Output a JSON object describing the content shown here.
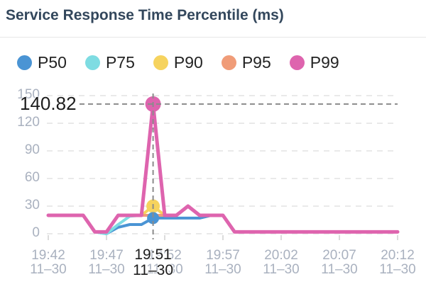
{
  "header": {
    "title": "Service Response Time Percentile (ms)"
  },
  "chart_data": {
    "type": "line",
    "title": "Service Response Time Percentile (ms)",
    "legend": {
      "position": "top",
      "labels": [
        "P50",
        "P75",
        "P90",
        "P95",
        "P99"
      ]
    },
    "x_axis": {
      "start": "19:42",
      "end": "20:12",
      "interval_minutes": 1,
      "tick_labels": [
        {
          "time": "19:42",
          "date": "11–30"
        },
        {
          "time": "19:47",
          "date": "11–30"
        },
        {
          "time": "19:52",
          "date": "11–30"
        },
        {
          "time": "19:57",
          "date": "11–30"
        },
        {
          "time": "20:02",
          "date": "11–30"
        },
        {
          "time": "20:07",
          "date": "11–30"
        },
        {
          "time": "20:12",
          "date": "11–30"
        }
      ]
    },
    "y_axis": {
      "min": 0,
      "max": 150,
      "tick_values": [
        0,
        30,
        60,
        90,
        120,
        150
      ],
      "tick_labels": [
        "0",
        "30",
        "60",
        "90",
        "120",
        "150"
      ]
    },
    "series": [
      {
        "name": "P50",
        "color": "#4a94d4",
        "values": [
          20,
          20,
          20,
          20,
          2,
          0,
          7,
          10,
          10,
          17,
          17,
          17,
          17,
          17,
          20,
          20,
          2,
          2,
          2,
          2,
          2,
          2,
          2,
          2,
          2,
          2,
          2,
          2,
          2,
          2,
          2
        ]
      },
      {
        "name": "P75",
        "color": "#7edce2",
        "values": [
          20,
          20,
          20,
          20,
          2,
          0,
          10,
          19,
          20,
          20,
          20,
          20,
          30,
          20,
          20,
          20,
          2,
          2,
          2,
          2,
          2,
          2,
          2,
          2,
          2,
          2,
          2,
          2,
          2,
          2,
          2
        ]
      },
      {
        "name": "P90",
        "color": "#f6d35e",
        "values": [
          20,
          20,
          20,
          20,
          2,
          2,
          20,
          20,
          20,
          30,
          20,
          20,
          30,
          20,
          20,
          20,
          2,
          2,
          2,
          2,
          2,
          2,
          2,
          2,
          2,
          2,
          2,
          2,
          2,
          2,
          2
        ]
      },
      {
        "name": "P95",
        "color": "#f09c78",
        "values": [
          20,
          20,
          20,
          20,
          2,
          2,
          20,
          20,
          20,
          20,
          20,
          20,
          30,
          20,
          20,
          20,
          2,
          2,
          2,
          2,
          2,
          2,
          2,
          2,
          2,
          2,
          2,
          2,
          2,
          2,
          2
        ]
      },
      {
        "name": "P99",
        "color": "#de64ae",
        "values": [
          20,
          20,
          20,
          20,
          2,
          2,
          20,
          20,
          20,
          140.82,
          20,
          20,
          30,
          20,
          20,
          20,
          2,
          2,
          2,
          2,
          2,
          2,
          2,
          2,
          2,
          2,
          2,
          2,
          2,
          2,
          2
        ]
      }
    ],
    "markers": [
      {
        "series": "P90",
        "x_index": 9,
        "value": 30
      },
      {
        "series": "P50",
        "x_index": 9,
        "value": 17
      },
      {
        "series": "P99",
        "x_index": 9,
        "value": 140.82
      }
    ],
    "crosshair": {
      "x_index": 9,
      "value_label": "140.82",
      "time_label": "19:51",
      "date_label": "11–30"
    },
    "colors": {
      "title_text": "#33475c",
      "axis_text": "#a9b1bf",
      "label_text": "#1d1d1d",
      "grid_line": "#e9e9e9",
      "axis_tick": "#dcdcdc",
      "crosshair": "#8b8b8b"
    }
  }
}
